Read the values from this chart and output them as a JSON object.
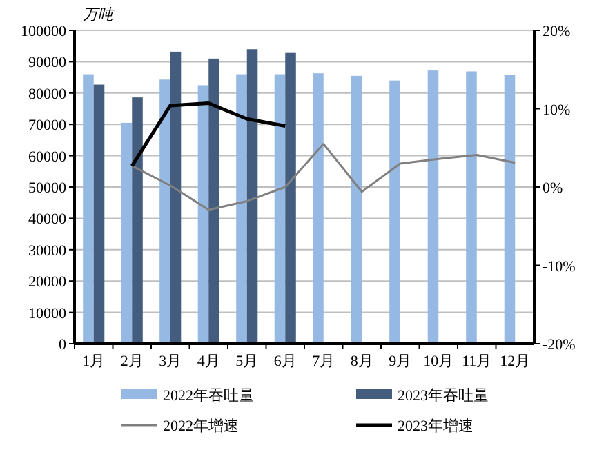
{
  "chart_data": {
    "type": "bar",
    "ylabel": "万吨",
    "categories": [
      "1月",
      "2月",
      "3月",
      "4月",
      "5月",
      "6月",
      "7月",
      "8月",
      "9月",
      "10月",
      "11月",
      "12月"
    ],
    "series": [
      {
        "name": "2022年吞吐量",
        "color": "#95b9e2",
        "values": [
          86000,
          70500,
          84300,
          82500,
          86000,
          86000,
          86300,
          85500,
          84000,
          87200,
          86900,
          85900
        ]
      },
      {
        "name": "2023年吞吐量",
        "color": "#445d7f",
        "values": [
          82700,
          78600,
          93200,
          91000,
          94000,
          92800,
          null,
          null,
          null,
          null,
          null,
          null
        ]
      },
      {
        "name": "2022年增速",
        "type": "line",
        "axis": "y2",
        "color": "#808080",
        "values": [
          null,
          2.7,
          0.2,
          -2.9,
          -1.8,
          0,
          5.5,
          -0.6,
          3.0,
          3.6,
          4.1,
          3.1
        ]
      },
      {
        "name": "2023年增速",
        "type": "line",
        "axis": "y2",
        "color": "#000000",
        "values": [
          null,
          2.7,
          10.4,
          10.7,
          8.7,
          7.8,
          null,
          null,
          null,
          null,
          null,
          null
        ]
      }
    ],
    "ylim": [
      0,
      100000
    ],
    "yticks": [
      0,
      10000,
      20000,
      30000,
      40000,
      50000,
      60000,
      70000,
      80000,
      90000,
      100000
    ],
    "y2lim": [
      -20,
      20
    ],
    "y2ticks": [
      {
        "value": -20,
        "label": "-20%"
      },
      {
        "value": -10,
        "label": "-10%"
      },
      {
        "value": 0,
        "label": "0%"
      },
      {
        "value": 10,
        "label": "10%"
      },
      {
        "value": 20,
        "label": "20%"
      }
    ],
    "grid": "y",
    "legend": "bottom"
  }
}
